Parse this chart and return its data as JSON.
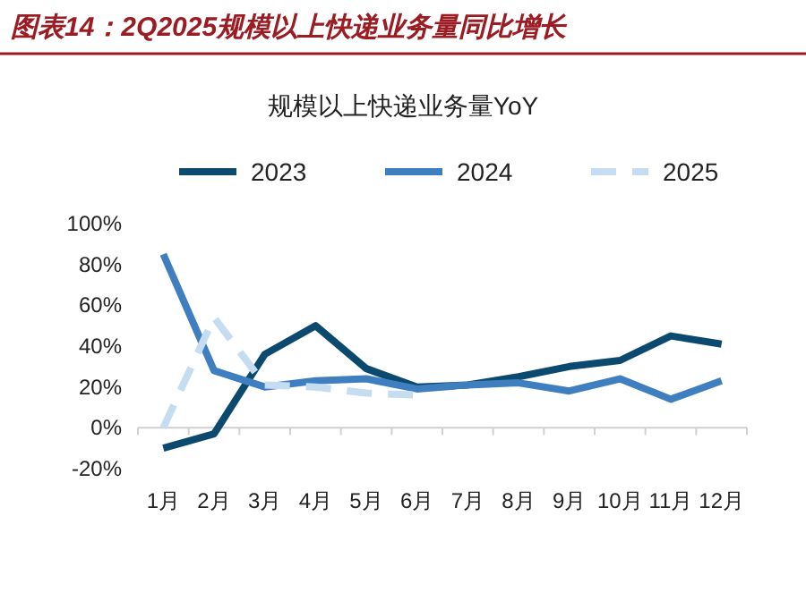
{
  "chart_data": {
    "type": "line",
    "title": "图表14：2Q2025规模以上快递业务量同比增长",
    "subtitle": "规模以上快递业务量YoY",
    "categories": [
      "1月",
      "2月",
      "3月",
      "4月",
      "5月",
      "6月",
      "7月",
      "8月",
      "9月",
      "10月",
      "11月",
      "12月"
    ],
    "series": [
      {
        "name": "2023",
        "color": "#0b4a6e",
        "values": [
          -10,
          -3,
          36,
          50,
          29,
          20,
          21,
          25,
          30,
          33,
          45,
          41
        ]
      },
      {
        "name": "2024",
        "color": "#3f7fc0",
        "values": [
          85,
          28,
          20,
          23,
          24,
          19,
          21,
          22,
          18,
          24,
          14,
          23
        ]
      },
      {
        "name": "2025",
        "color": "#c6dcf0",
        "line_style": "dashed",
        "values": [
          0,
          54,
          21,
          20,
          17,
          16,
          null,
          null,
          null,
          null,
          null,
          null
        ]
      }
    ],
    "ylim": [
      -20,
      100
    ],
    "yticks": [
      {
        "value": -20,
        "label": "-20%"
      },
      {
        "value": 0,
        "label": "0%"
      },
      {
        "value": 20,
        "label": "20%"
      },
      {
        "value": 40,
        "label": "40%"
      },
      {
        "value": 60,
        "label": "60%"
      },
      {
        "value": 80,
        "label": "80%"
      },
      {
        "value": 100,
        "label": "100%"
      }
    ],
    "legend": "top",
    "marker": "none"
  }
}
